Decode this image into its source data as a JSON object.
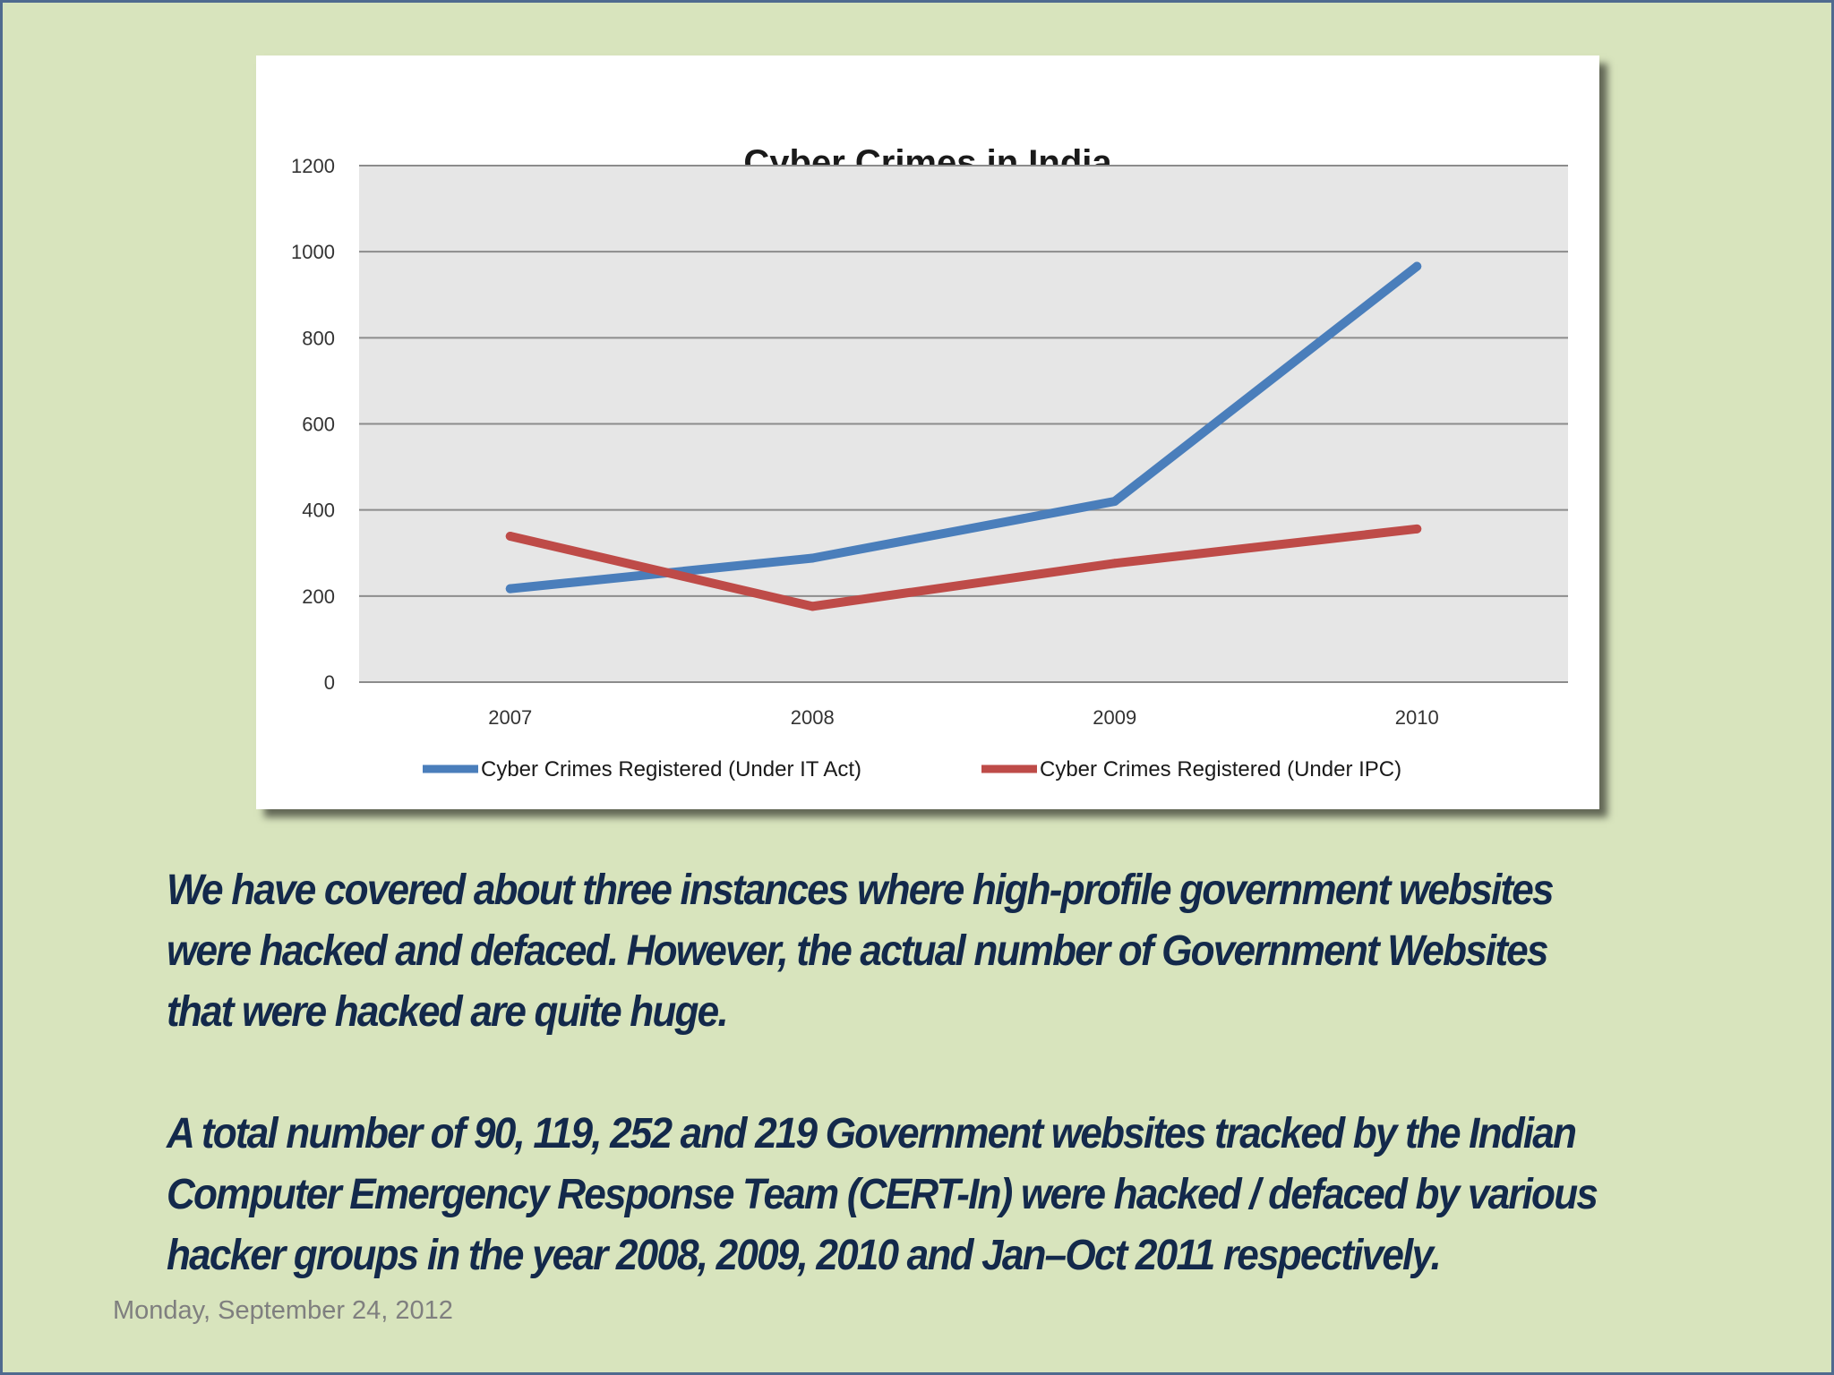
{
  "chart_data": {
    "type": "line",
    "title": "Cyber Crimes in India",
    "categories": [
      "2007",
      "2008",
      "2009",
      "2010"
    ],
    "ylim": [
      0,
      1200
    ],
    "yticks": [
      0,
      200,
      400,
      600,
      800,
      1000,
      1200
    ],
    "grid": true,
    "legend_position": "bottom",
    "series": [
      {
        "name": "Cyber Crimes Registered (Under IT Act)",
        "color": "#4a7ebb",
        "values": [
          217,
          288,
          420,
          966
        ]
      },
      {
        "name": "Cyber Crimes Registered (Under IPC)",
        "color": "#be4b48",
        "values": [
          339,
          176,
          276,
          356
        ]
      }
    ],
    "plot_background": "#e6e6e6"
  },
  "text": {
    "paragraph1": "We have covered about three instances where high-profile government websites were hacked and defaced. However, the actual number of Government Websites that were hacked are quite huge.",
    "paragraph2": "A total number of 90, 119, 252 and 219 Government websites tracked by the Indian Computer Emergency Response Team (CERT-In) were hacked / defaced by various hacker groups in the year 2008, 2009, 2010 and Jan–Oct 2011 respectively."
  },
  "footer": {
    "date": "Monday, September 24, 2012"
  },
  "colors": {
    "slide_background": "#d8e4bd",
    "text": "#13294b",
    "footer_text": "#7f7f7f"
  }
}
